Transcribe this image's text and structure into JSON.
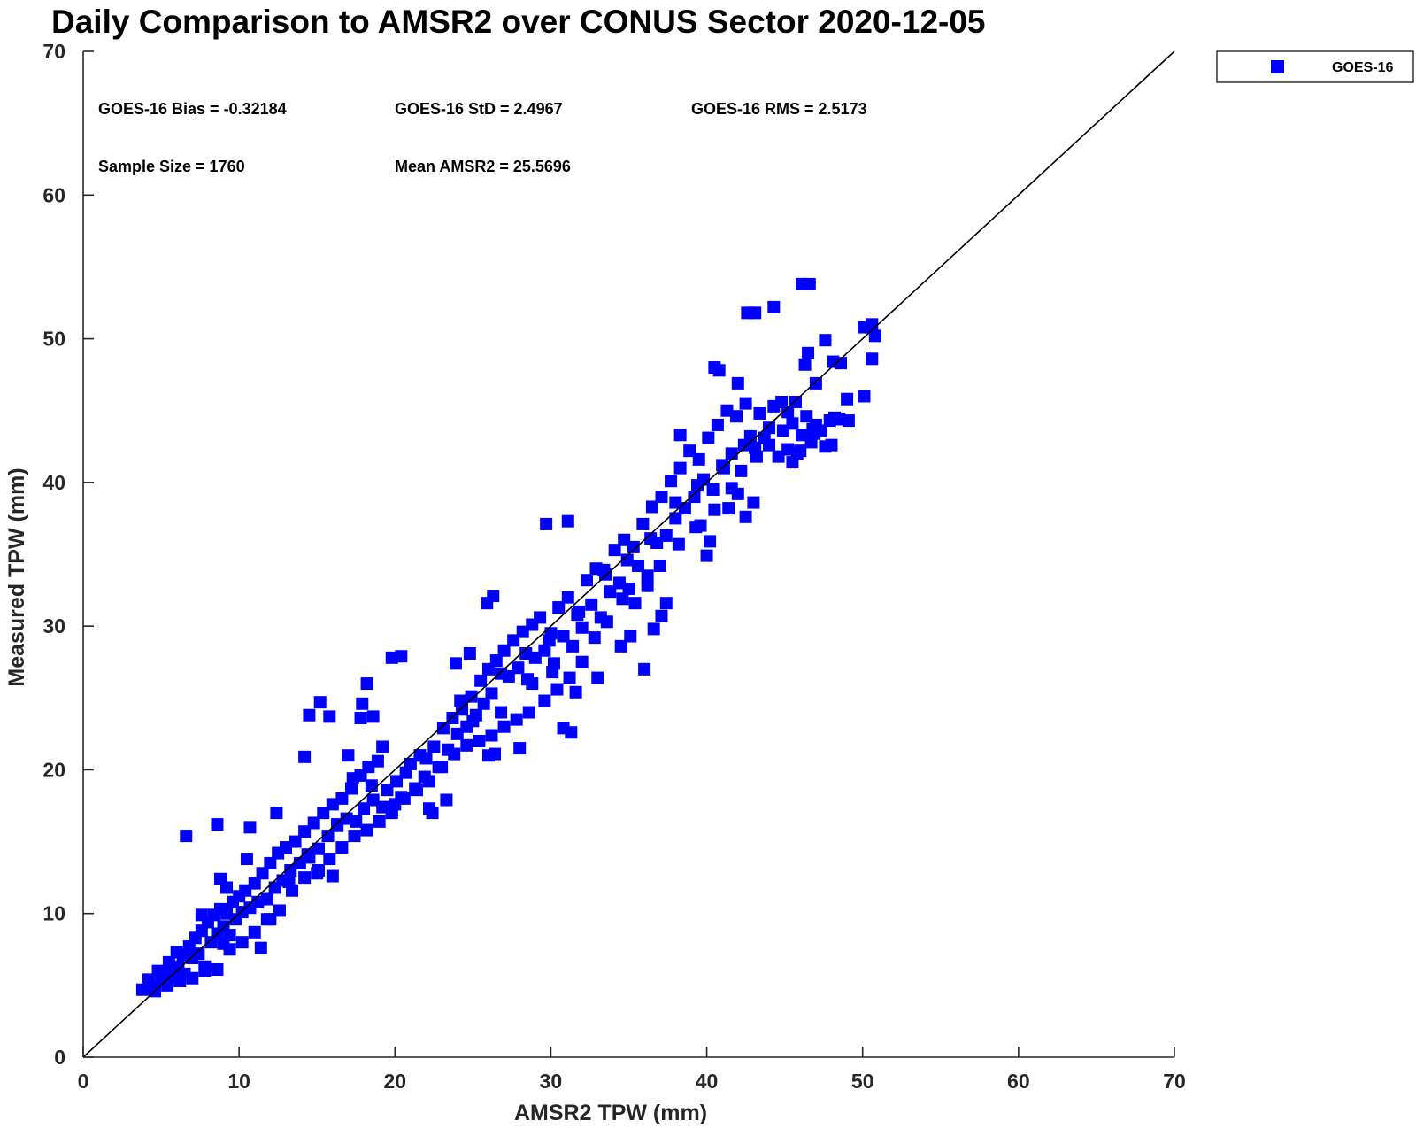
{
  "chart_data": {
    "type": "scatter",
    "title": "Daily Comparison to AMSR2 over CONUS Sector 2020-12-05",
    "xlabel": "AMSR2 TPW (mm)",
    "ylabel": "Measured TPW (mm)",
    "xlim": [
      0,
      70
    ],
    "ylim": [
      0,
      70
    ],
    "xticks": [
      "0",
      "10",
      "20",
      "30",
      "40",
      "50",
      "60",
      "70"
    ],
    "yticks": [
      "0",
      "10",
      "20",
      "30",
      "40",
      "50",
      "60",
      "70"
    ],
    "grid": false,
    "legend": {
      "placement": "top-right",
      "entries": [
        "GOES-16"
      ]
    },
    "annotations": {
      "bias": "GOES-16 Bias = -0.32184",
      "std": "GOES-16 StD = 2.4967",
      "rms": "GOES-16 RMS = 2.5173",
      "sample_size": "Sample Size = 1760",
      "mean": "Mean AMSR2 = 25.5696"
    },
    "reference_line": {
      "type": "one-to-one",
      "from": [
        0,
        0
      ],
      "to": [
        70,
        70
      ],
      "color": "#000000"
    },
    "series": [
      {
        "name": "GOES-16",
        "color": "#0000ff",
        "marker": "square",
        "points": [
          [
            3.8,
            4.7
          ],
          [
            4.2,
            5.4
          ],
          [
            4.5,
            4.9
          ],
          [
            4.8,
            6.0
          ],
          [
            5.0,
            5.3
          ],
          [
            5.3,
            5.9
          ],
          [
            5.5,
            6.6
          ],
          [
            5.8,
            5.6
          ],
          [
            6.1,
            6.3
          ],
          [
            6.4,
            7.1
          ],
          [
            6.5,
            5.8
          ],
          [
            6.8,
            7.7
          ],
          [
            7.0,
            6.9
          ],
          [
            7.2,
            8.3
          ],
          [
            7.4,
            7.2
          ],
          [
            7.6,
            8.8
          ],
          [
            7.8,
            6.3
          ],
          [
            8.0,
            9.4
          ],
          [
            8.2,
            8.0
          ],
          [
            8.4,
            9.9
          ],
          [
            8.6,
            8.6
          ],
          [
            8.8,
            10.3
          ],
          [
            9.0,
            9.1
          ],
          [
            9.2,
            10.0
          ],
          [
            9.4,
            8.5
          ],
          [
            9.6,
            10.8
          ],
          [
            9.8,
            9.6
          ],
          [
            10.0,
            11.2
          ],
          [
            10.2,
            10.1
          ],
          [
            10.4,
            11.6
          ],
          [
            10.7,
            10.4
          ],
          [
            11.0,
            12.1
          ],
          [
            11.2,
            10.8
          ],
          [
            11.5,
            12.8
          ],
          [
            11.8,
            11.0
          ],
          [
            12.0,
            13.5
          ],
          [
            12.3,
            11.8
          ],
          [
            12.5,
            14.2
          ],
          [
            12.8,
            12.3
          ],
          [
            13.0,
            14.6
          ],
          [
            13.3,
            13.0
          ],
          [
            13.6,
            15.0
          ],
          [
            13.9,
            13.5
          ],
          [
            14.2,
            15.7
          ],
          [
            14.5,
            13.9
          ],
          [
            14.8,
            16.3
          ],
          [
            15.1,
            14.5
          ],
          [
            15.4,
            17.0
          ],
          [
            15.7,
            15.4
          ],
          [
            16.0,
            17.6
          ],
          [
            16.3,
            16.1
          ],
          [
            16.6,
            18.0
          ],
          [
            16.9,
            16.6
          ],
          [
            17.2,
            18.7
          ],
          [
            17.5,
            16.4
          ],
          [
            17.8,
            19.6
          ],
          [
            18.0,
            17.3
          ],
          [
            18.3,
            20.2
          ],
          [
            18.6,
            17.9
          ],
          [
            18.9,
            20.6
          ],
          [
            19.2,
            17.4
          ],
          [
            19.5,
            18.6
          ],
          [
            19.8,
            17.0
          ],
          [
            20.1,
            19.2
          ],
          [
            20.4,
            18.1
          ],
          [
            20.7,
            19.8
          ],
          [
            21.0,
            20.4
          ],
          [
            21.3,
            18.7
          ],
          [
            21.6,
            21.0
          ],
          [
            21.9,
            19.5
          ],
          [
            22.2,
            17.3
          ],
          [
            22.5,
            21.6
          ],
          [
            22.8,
            20.2
          ],
          [
            23.1,
            22.9
          ],
          [
            23.4,
            21.4
          ],
          [
            23.7,
            23.6
          ],
          [
            24.0,
            22.5
          ],
          [
            24.3,
            24.2
          ],
          [
            24.6,
            23.0
          ],
          [
            24.9,
            25.1
          ],
          [
            25.2,
            23.8
          ],
          [
            25.5,
            26.2
          ],
          [
            25.7,
            24.6
          ],
          [
            26.0,
            27.0
          ],
          [
            26.2,
            25.3
          ],
          [
            26.5,
            27.6
          ],
          [
            26.8,
            24.0
          ],
          [
            27.0,
            28.3
          ],
          [
            27.3,
            26.5
          ],
          [
            27.6,
            29.0
          ],
          [
            27.9,
            27.1
          ],
          [
            28.2,
            29.6
          ],
          [
            28.5,
            26.3
          ],
          [
            28.8,
            30.1
          ],
          [
            29.0,
            27.8
          ],
          [
            29.3,
            30.6
          ],
          [
            29.6,
            28.3
          ],
          [
            29.9,
            29.0
          ],
          [
            30.2,
            27.4
          ],
          [
            30.5,
            31.3
          ],
          [
            30.8,
            29.3
          ],
          [
            31.1,
            32.0
          ],
          [
            31.4,
            28.6
          ],
          [
            31.7,
            30.8
          ],
          [
            32.0,
            29.9
          ],
          [
            32.3,
            33.2
          ],
          [
            32.6,
            31.5
          ],
          [
            32.9,
            34.0
          ],
          [
            33.2,
            30.6
          ],
          [
            33.5,
            33.6
          ],
          [
            33.8,
            32.4
          ],
          [
            34.1,
            35.3
          ],
          [
            34.4,
            33.0
          ],
          [
            34.7,
            36.0
          ],
          [
            35.0,
            32.6
          ],
          [
            35.3,
            35.5
          ],
          [
            35.6,
            34.2
          ],
          [
            35.9,
            37.1
          ],
          [
            36.2,
            33.5
          ],
          [
            36.5,
            38.3
          ],
          [
            36.8,
            35.8
          ],
          [
            37.1,
            39.0
          ],
          [
            37.4,
            36.3
          ],
          [
            37.7,
            40.1
          ],
          [
            38.0,
            37.5
          ],
          [
            38.3,
            41.0
          ],
          [
            38.6,
            38.2
          ],
          [
            38.9,
            42.2
          ],
          [
            39.2,
            39.0
          ],
          [
            39.5,
            41.6
          ],
          [
            39.8,
            40.2
          ],
          [
            40.1,
            43.1
          ],
          [
            40.4,
            39.5
          ],
          [
            40.7,
            44.0
          ],
          [
            41.0,
            41.2
          ],
          [
            41.3,
            45.0
          ],
          [
            41.6,
            42.0
          ],
          [
            41.9,
            44.6
          ],
          [
            42.2,
            40.8
          ],
          [
            42.5,
            45.5
          ],
          [
            42.8,
            43.2
          ],
          [
            43.1,
            42.4
          ],
          [
            43.4,
            44.8
          ],
          [
            43.7,
            43.1
          ],
          [
            44.0,
            42.6
          ],
          [
            44.3,
            45.3
          ],
          [
            44.6,
            41.8
          ],
          [
            44.9,
            43.6
          ],
          [
            45.2,
            42.3
          ],
          [
            45.5,
            44.1
          ],
          [
            45.8,
            42.0
          ],
          [
            46.1,
            43.3
          ],
          [
            46.4,
            44.6
          ],
          [
            46.7,
            42.8
          ],
          [
            47.0,
            44.0
          ],
          [
            47.3,
            43.6
          ],
          [
            47.6,
            42.5
          ],
          [
            47.9,
            44.3
          ],
          [
            48.2,
            44.5
          ],
          [
            48.5,
            44.4
          ],
          [
            6.6,
            15.4
          ],
          [
            8.6,
            16.2
          ],
          [
            10.7,
            16.0
          ],
          [
            12.4,
            17.0
          ],
          [
            14.2,
            20.9
          ],
          [
            14.5,
            23.8
          ],
          [
            15.2,
            24.7
          ],
          [
            15.8,
            23.7
          ],
          [
            17.9,
            24.6
          ],
          [
            18.2,
            26.0
          ],
          [
            17.8,
            23.6
          ],
          [
            18.6,
            23.7
          ],
          [
            19.8,
            27.8
          ],
          [
            20.4,
            27.9
          ],
          [
            22.4,
            17.0
          ],
          [
            23.3,
            17.9
          ],
          [
            25.9,
            31.6
          ],
          [
            26.3,
            32.1
          ],
          [
            26.0,
            21.0
          ],
          [
            26.4,
            21.1
          ],
          [
            28.0,
            21.5
          ],
          [
            29.7,
            37.1
          ],
          [
            31.1,
            37.3
          ],
          [
            31.3,
            22.6
          ],
          [
            30.8,
            22.9
          ],
          [
            35.1,
            29.3
          ],
          [
            36.0,
            27.0
          ],
          [
            37.1,
            30.7
          ],
          [
            38.3,
            43.3
          ],
          [
            40.0,
            34.9
          ],
          [
            40.2,
            35.9
          ],
          [
            42.5,
            37.6
          ],
          [
            43.0,
            38.6
          ],
          [
            40.5,
            48.0
          ],
          [
            40.8,
            47.8
          ],
          [
            42.0,
            46.9
          ],
          [
            42.6,
            51.8
          ],
          [
            43.1,
            51.8
          ],
          [
            44.3,
            52.2
          ],
          [
            46.1,
            53.8
          ],
          [
            46.6,
            53.8
          ],
          [
            46.3,
            48.2
          ],
          [
            46.5,
            49.0
          ],
          [
            47.6,
            49.9
          ],
          [
            48.1,
            48.4
          ],
          [
            48.6,
            48.3
          ],
          [
            49.0,
            45.8
          ],
          [
            50.1,
            46.0
          ],
          [
            50.1,
            50.8
          ],
          [
            50.6,
            51.0
          ],
          [
            50.8,
            50.2
          ],
          [
            50.6,
            48.6
          ],
          [
            47.0,
            46.9
          ],
          [
            46.8,
            43.7
          ],
          [
            45.5,
            41.4
          ],
          [
            43.2,
            41.8
          ],
          [
            41.6,
            39.6
          ],
          [
            40.5,
            38.1
          ],
          [
            39.3,
            36.9
          ],
          [
            38.2,
            35.7
          ],
          [
            37.0,
            34.2
          ],
          [
            36.2,
            32.8
          ],
          [
            35.4,
            31.6
          ],
          [
            34.6,
            31.9
          ],
          [
            33.6,
            30.3
          ],
          [
            32.8,
            29.2
          ],
          [
            32.0,
            27.5
          ],
          [
            31.2,
            26.4
          ],
          [
            30.4,
            25.6
          ],
          [
            29.6,
            24.8
          ],
          [
            28.6,
            24.0
          ],
          [
            27.8,
            23.5
          ],
          [
            27.0,
            23.0
          ],
          [
            26.2,
            22.4
          ],
          [
            25.4,
            22.0
          ],
          [
            24.6,
            21.7
          ],
          [
            23.8,
            21.1
          ],
          [
            23.0,
            20.2
          ],
          [
            22.2,
            19.2
          ],
          [
            21.4,
            18.6
          ],
          [
            20.6,
            18.0
          ],
          [
            19.8,
            17.2
          ],
          [
            19.0,
            16.4
          ],
          [
            18.2,
            15.8
          ],
          [
            17.4,
            15.4
          ],
          [
            16.6,
            14.6
          ],
          [
            15.8,
            13.8
          ],
          [
            15.0,
            12.8
          ],
          [
            14.2,
            12.5
          ],
          [
            13.4,
            11.6
          ],
          [
            12.6,
            10.2
          ],
          [
            11.8,
            9.6
          ],
          [
            11.0,
            8.7
          ],
          [
            10.2,
            8.0
          ],
          [
            9.4,
            7.5
          ],
          [
            8.6,
            6.1
          ],
          [
            7.8,
            6.0
          ],
          [
            7.0,
            5.5
          ],
          [
            6.2,
            5.3
          ],
          [
            5.4,
            5.0
          ],
          [
            4.6,
            4.6
          ],
          [
            8.8,
            12.4
          ],
          [
            9.2,
            11.8
          ],
          [
            10.5,
            13.8
          ],
          [
            11.4,
            7.6
          ],
          [
            16.0,
            12.6
          ],
          [
            15.1,
            13.0
          ],
          [
            17.0,
            21.0
          ],
          [
            17.3,
            19.4
          ],
          [
            19.2,
            21.6
          ],
          [
            21.6,
            21.0
          ],
          [
            24.8,
            28.1
          ],
          [
            23.9,
            27.4
          ],
          [
            28.8,
            26.0
          ],
          [
            30.1,
            26.8
          ],
          [
            31.6,
            25.4
          ],
          [
            33.0,
            26.4
          ],
          [
            34.5,
            28.6
          ],
          [
            36.6,
            29.8
          ],
          [
            37.4,
            31.6
          ],
          [
            39.6,
            37.0
          ],
          [
            41.4,
            38.2
          ],
          [
            42.0,
            39.2
          ],
          [
            44.8,
            45.6
          ],
          [
            45.7,
            45.6
          ],
          [
            46.0,
            42.2
          ],
          [
            48.0,
            42.6
          ],
          [
            49.1,
            44.3
          ],
          [
            6.0,
            7.3
          ],
          [
            7.6,
            9.9
          ],
          [
            9.0,
            7.9
          ],
          [
            12.0,
            9.6
          ],
          [
            13.2,
            12.2
          ],
          [
            14.4,
            14.1
          ],
          [
            16.3,
            16.2
          ],
          [
            18.5,
            18.9
          ],
          [
            20.0,
            17.6
          ],
          [
            22.0,
            20.8
          ],
          [
            24.2,
            24.8
          ],
          [
            25.0,
            23.4
          ],
          [
            26.8,
            26.7
          ],
          [
            28.4,
            28.1
          ],
          [
            30.0,
            29.5
          ],
          [
            31.8,
            31.0
          ],
          [
            33.4,
            33.9
          ],
          [
            34.9,
            34.6
          ],
          [
            36.4,
            36.1
          ],
          [
            38.0,
            38.6
          ],
          [
            39.4,
            39.8
          ],
          [
            41.1,
            41.0
          ],
          [
            42.4,
            42.6
          ],
          [
            44.0,
            43.8
          ],
          [
            45.2,
            44.9
          ],
          [
            46.9,
            43.4
          ]
        ]
      }
    ]
  }
}
